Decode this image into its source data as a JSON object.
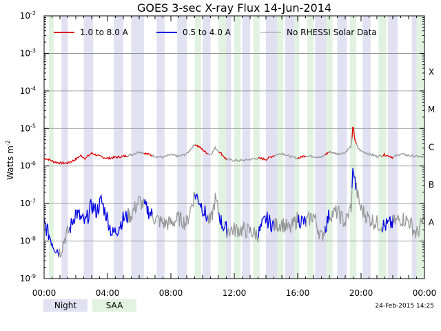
{
  "chart_data": {
    "type": "line",
    "title": "GOES 3-sec X-ray Flux    14-Jun-2014",
    "ylabel": "Watts m",
    "ylabel_sup": "-2",
    "yscale": "log",
    "ylim": [
      1e-09,
      0.01
    ],
    "y_tick_labels": [
      {
        "base": "10",
        "exp": "-9",
        "value": 1e-09
      },
      {
        "base": "10",
        "exp": "-8",
        "value": 1e-08
      },
      {
        "base": "10",
        "exp": "-7",
        "value": 1e-07
      },
      {
        "base": "10",
        "exp": "-6",
        "value": 1e-06
      },
      {
        "base": "10",
        "exp": "-5",
        "value": 1e-05
      },
      {
        "base": "10",
        "exp": "-4",
        "value": 0.0001
      },
      {
        "base": "10",
        "exp": "-3",
        "value": 0.001
      },
      {
        "base": "10",
        "exp": "-2",
        "value": 0.01
      }
    ],
    "flare_classes": [
      {
        "label": "A",
        "value": 1e-08
      },
      {
        "label": "B",
        "value": 1e-07
      },
      {
        "label": "C",
        "value": 1e-06
      },
      {
        "label": "M",
        "value": 1e-05
      },
      {
        "label": "X",
        "value": 0.0001
      }
    ],
    "xlim_hours": [
      0,
      24
    ],
    "x_tick_labels": [
      {
        "label": "00:00",
        "hour": 0
      },
      {
        "label": "04:00",
        "hour": 4
      },
      {
        "label": "08:00",
        "hour": 8
      },
      {
        "label": "12:00",
        "hour": 12
      },
      {
        "label": "16:00",
        "hour": 16
      },
      {
        "label": "20:00",
        "hour": 20
      },
      {
        "label": "00:00",
        "hour": 24
      }
    ],
    "grid": "horizontal",
    "series": [
      {
        "name": "1.0 to 8.0 A",
        "color": "#e00000",
        "x_hours": [
          0,
          0.3,
          0.6,
          1.0,
          1.5,
          2.0,
          2.3,
          2.6,
          3.0,
          3.5,
          4.0,
          4.5,
          5.0,
          5.5,
          6.0,
          6.5,
          7.0,
          7.5,
          8.0,
          8.5,
          9.0,
          9.5,
          9.8,
          10.2,
          10.5,
          10.8,
          11.2,
          11.5,
          12.0,
          12.5,
          13.0,
          13.5,
          14.0,
          14.5,
          15.0,
          15.5,
          16.0,
          16.5,
          17.0,
          17.5,
          18.0,
          18.5,
          19.0,
          19.4,
          19.5,
          19.6,
          19.8,
          20.0,
          20.5,
          21.0,
          21.5,
          22.0,
          22.5,
          23.0,
          23.5,
          24.0
        ],
        "values": [
          1.6e-06,
          1.5e-06,
          1.3e-06,
          1.2e-06,
          1.2e-06,
          1.5e-06,
          1.9e-06,
          1.6e-06,
          2.2e-06,
          1.8e-06,
          1.6e-06,
          1.7e-06,
          1.8e-06,
          2e-06,
          2.4e-06,
          2.1e-06,
          1.8e-06,
          1.7e-06,
          2e-06,
          1.8e-06,
          2.1e-06,
          3.8e-06,
          3.2e-06,
          2.3e-06,
          2e-06,
          3e-06,
          2.1e-06,
          1.5e-06,
          1.4e-06,
          1.4e-06,
          1.5e-06,
          1.6e-06,
          1.5e-06,
          1.9e-06,
          2.2e-06,
          1.8e-06,
          1.6e-06,
          1.9e-06,
          1.8e-06,
          1.7e-06,
          2.4e-06,
          2.1e-06,
          2.3e-06,
          3.5e-06,
          1.4e-05,
          5e-06,
          3e-06,
          2.5e-06,
          2.1e-06,
          1.8e-06,
          2e-06,
          1.7e-06,
          2.1e-06,
          1.9e-06,
          1.8e-06,
          1.7e-06
        ],
        "gray_ranges_hours": [
          [
            5.3,
            6.3
          ],
          [
            6.8,
            9.5
          ],
          [
            10.3,
            11.0
          ],
          [
            11.5,
            13.5
          ],
          [
            14.5,
            16.0
          ],
          [
            16.5,
            17.7
          ],
          [
            18.0,
            19.4
          ],
          [
            19.7,
            21.3
          ],
          [
            22.0,
            24.0
          ]
        ]
      },
      {
        "name": "0.5 to 4.0 A",
        "color": "#0000e0",
        "x_hours": [
          0,
          0.3,
          0.6,
          1.0,
          1.3,
          1.6,
          2.0,
          2.3,
          2.6,
          3.0,
          3.3,
          3.6,
          4.0,
          4.3,
          4.6,
          5.0,
          5.5,
          6.0,
          6.5,
          7.0,
          7.5,
          8.0,
          8.5,
          9.0,
          9.5,
          9.8,
          10.2,
          10.5,
          10.8,
          11.2,
          11.5,
          12.0,
          12.5,
          13.0,
          13.5,
          14.0,
          14.5,
          15.0,
          15.5,
          16.0,
          16.5,
          17.0,
          17.5,
          18.0,
          18.5,
          19.0,
          19.4,
          19.5,
          19.6,
          19.8,
          20.0,
          20.5,
          21.0,
          21.5,
          22.0,
          22.5,
          23.0,
          23.5,
          24.0
        ],
        "values": [
          3e-08,
          1.5e-08,
          8e-09,
          5e-09,
          1.2e-08,
          2e-08,
          6e-08,
          4e-08,
          3e-08,
          9e-08,
          6e-08,
          1.2e-07,
          4e-08,
          1.5e-08,
          2e-08,
          4e-08,
          5e-08,
          1.2e-07,
          7e-08,
          4e-08,
          3e-08,
          3e-08,
          4e-08,
          3e-08,
          1.8e-07,
          1.2e-07,
          5e-08,
          3e-08,
          1.3e-07,
          3e-08,
          2e-08,
          2e-08,
          2e-08,
          1.8e-08,
          1.5e-08,
          4e-08,
          2.5e-08,
          3e-08,
          2e-08,
          4e-08,
          3e-08,
          5e-08,
          1.2e-08,
          5e-08,
          6e-08,
          3e-08,
          9e-08,
          1.2e-06,
          4e-07,
          1.5e-07,
          7e-08,
          4e-08,
          3e-08,
          2.5e-08,
          3e-08,
          4e-08,
          3.5e-08,
          1.5e-08,
          4e-08
        ],
        "gray_ranges_hours": [
          [
            0.9,
            1.6
          ],
          [
            5.3,
            6.3
          ],
          [
            6.8,
            9.5
          ],
          [
            10.3,
            11.0
          ],
          [
            11.5,
            13.5
          ],
          [
            14.5,
            16.0
          ],
          [
            16.5,
            17.7
          ],
          [
            18.0,
            19.4
          ],
          [
            19.7,
            21.3
          ],
          [
            22.0,
            24.0
          ]
        ]
      }
    ],
    "legend": {
      "placement": "top",
      "items": [
        {
          "label": "1.0 to 8.0 A",
          "color": "#e00000"
        },
        {
          "label": "0.5 to 4.0 A",
          "color": "#0000e0"
        },
        {
          "label": "No RHESSI Solar Data",
          "color": "#999999"
        }
      ]
    },
    "night_bands_hours": [
      [
        1.1,
        1.5
      ],
      [
        2.5,
        3.1
      ],
      [
        4.4,
        5.0
      ],
      [
        5.5,
        6.3
      ],
      [
        7.1,
        7.6
      ],
      [
        8.4,
        9.0
      ],
      [
        10.0,
        10.5
      ],
      [
        11.3,
        11.8
      ],
      [
        12.5,
        13.0
      ],
      [
        14.0,
        14.7
      ],
      [
        15.2,
        15.8
      ],
      [
        17.1,
        17.8
      ],
      [
        18.5,
        19.1
      ],
      [
        20.1,
        20.6
      ],
      [
        21.7,
        22.3
      ],
      [
        23.2,
        23.8
      ]
    ],
    "saa_bands_hours": [
      [
        0.3,
        0.6
      ],
      [
        9.5,
        9.9
      ],
      [
        11.0,
        11.5
      ],
      [
        12.0,
        12.4
      ],
      [
        13.2,
        13.6
      ],
      [
        14.7,
        15.1
      ],
      [
        15.8,
        16.1
      ],
      [
        16.6,
        17.0
      ],
      [
        17.8,
        18.2
      ],
      [
        19.3,
        19.7
      ],
      [
        21.1,
        21.6
      ],
      [
        23.5,
        24.0
      ]
    ],
    "bottom_legend": [
      {
        "label": "Night",
        "color": "#e1e1f2"
      },
      {
        "label": "SAA",
        "color": "#e1f2e1"
      }
    ],
    "timestamp": "24-Feb-2015 14:25"
  }
}
